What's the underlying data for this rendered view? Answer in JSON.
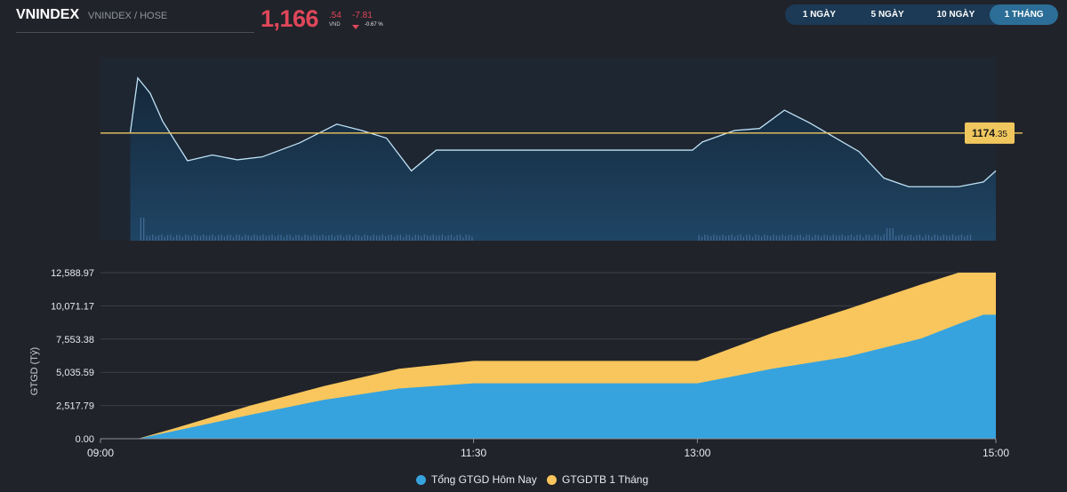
{
  "header": {
    "symbol": "VNINDEX",
    "exchange": "VNINDEX / HOSE",
    "price_int": "1,166",
    "price_dec": ".54",
    "unit": "VND",
    "change": "-7.81",
    "change_pct": "-0.67 %",
    "down_color": "#e0475a"
  },
  "tabs": [
    {
      "label": "1 NGÀY",
      "active": false
    },
    {
      "label": "5 NGÀY",
      "active": false
    },
    {
      "label": "10 NGÀY",
      "active": false
    },
    {
      "label": "1 THÁNG",
      "active": true
    }
  ],
  "chart_data": [
    {
      "type": "line",
      "title": "",
      "reference": {
        "int": "1174",
        "dec": ".35",
        "value": 1174.35,
        "color": "#f0c75e"
      },
      "line_color": "#bfe3f6",
      "x": [
        "09:00",
        "09:12",
        "09:15",
        "09:20",
        "09:25",
        "09:35",
        "09:45",
        "09:55",
        "10:05",
        "10:20",
        "10:35",
        "10:45",
        "10:55",
        "11:05",
        "11:15",
        "11:30",
        "11:40",
        "12:00",
        "12:30",
        "12:58",
        "13:02",
        "13:15",
        "13:25",
        "13:35",
        "13:45",
        "13:55",
        "14:05",
        "14:15",
        "14:25",
        "14:35",
        "14:45",
        "14:55",
        "15:00"
      ],
      "y": [
        null,
        1174.5,
        1185.8,
        1182.6,
        1176.8,
        1168.6,
        1169.8,
        1168.8,
        1169.4,
        1172.3,
        1176.2,
        1174.9,
        1173.3,
        1166.5,
        1170.8,
        1170.8,
        1170.8,
        1170.8,
        1170.8,
        1170.8,
        1172.5,
        1174.9,
        1175.3,
        1179.1,
        1176.5,
        1173.5,
        1170.5,
        1165.0,
        1163.2,
        1163.2,
        1163.2,
        1164.2,
        1166.5
      ],
      "ylim": [
        1152,
        1190
      ],
      "volume": {
        "color": "#4a73a2",
        "pattern": "spike at open, low during session, no trades during lunch break"
      }
    },
    {
      "type": "area",
      "title": "",
      "ylabel": "GTGD (Tỷ)",
      "x_ticks": [
        "09:00",
        "11:30",
        "13:00",
        "15:00"
      ],
      "y_ticks": [
        "0.00",
        "2,517.79",
        "5,035.59",
        "7,553.38",
        "10,071.17",
        "12,588.97"
      ],
      "ylim": [
        0,
        12588.97
      ],
      "x": [
        "09:00",
        "09:15",
        "09:30",
        "10:00",
        "10:30",
        "11:00",
        "11:30",
        "12:30",
        "13:00",
        "13:30",
        "14:00",
        "14:30",
        "14:45",
        "14:55",
        "15:00"
      ],
      "series": [
        {
          "name": "Tổng GTGD Hôm Nay",
          "color": "#36a3de",
          "values": [
            0,
            0,
            600,
            1800,
            2950,
            3800,
            4200,
            4200,
            4200,
            5300,
            6200,
            7600,
            8700,
            9400,
            9400
          ]
        },
        {
          "name": "GTGDTB 1 Tháng",
          "color": "#f8c65c",
          "values": [
            0,
            0,
            800,
            2500,
            4000,
            5300,
            5900,
            5900,
            5900,
            8000,
            9800,
            11700,
            12588.97,
            12588.97,
            12588.97
          ]
        }
      ]
    }
  ]
}
